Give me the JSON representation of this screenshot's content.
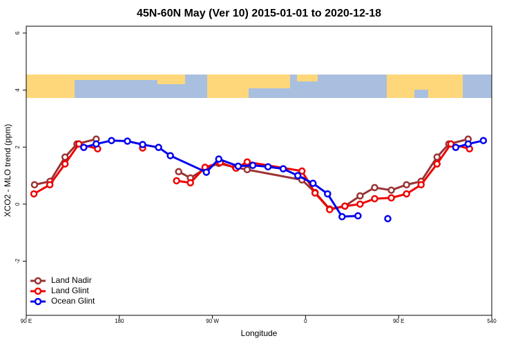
{
  "chart_data": {
    "type": "line",
    "title": "45N-60N May (Ver 10)   2015-01-01 to 2020-12-18",
    "x_label": "Longitude",
    "y_label": "XCO2 - MLO trend (ppm)",
    "xlim": [
      90,
      540
    ],
    "ylim": [
      -3.9,
      6.24
    ],
    "xticks": [
      {
        "value": 90,
        "label": "90 E"
      },
      180,
      {
        "value": 270,
        "label": "90 W"
      },
      {
        "value": 360,
        "label": "0"
      },
      {
        "value": 450,
        "label": "90 E"
      },
      540
    ],
    "yticks": [
      -2,
      0,
      2,
      4,
      6
    ],
    "legend": "bottom-left",
    "series": [
      {
        "name": "Land Nadir",
        "color": "#993333",
        "x": [
          98,
          113,
          127.5,
          139,
          157.6,
          null,
          237.3,
          248.7,
          262.8,
          276.1,
          292.2,
          303.6,
          356.5,
          369.2,
          383.3,
          398,
          412.7,
          426.8,
          442.9,
          457.6,
          471.7,
          487.1,
          498.5,
          517.2
        ],
        "values": [
          0.68,
          0.8,
          1.65,
          2.11,
          2.28,
          null,
          1.14,
          0.92,
          1.24,
          1.43,
          1.29,
          1.21,
          0.85,
          0.41,
          -0.17,
          -0.07,
          0.29,
          0.58,
          0.49,
          0.68,
          0.8,
          1.65,
          2.11,
          2.28
        ]
      },
      {
        "name": "Land Glint",
        "color": "#ee0000",
        "x": [
          97.4,
          112.8,
          127.5,
          140.9,
          159,
          null,
          202.5,
          null,
          235.3,
          248.7,
          262.8,
          277.5,
          292.9,
          303.6,
          356.5,
          369.2,
          383.3,
          398,
          412.7,
          426.8,
          442.9,
          457.6,
          471.7,
          487.1,
          500.5,
          518.5
        ],
        "values": [
          0.36,
          0.68,
          1.41,
          2.11,
          1.94,
          null,
          1.97,
          null,
          0.82,
          0.75,
          1.29,
          1.46,
          1.26,
          1.48,
          1.16,
          0.39,
          -0.19,
          -0.07,
          0,
          0.19,
          0.22,
          0.36,
          0.68,
          1.41,
          2.11,
          1.94
        ]
      },
      {
        "name": "Ocean Glint",
        "color": "#0000ee",
        "x": [
          145.6,
          157.6,
          172.4,
          187.8,
          202.5,
          217.9,
          229.3,
          264.1,
          276.1,
          294.9,
          309,
          323.7,
          338.4,
          352.5,
          367.2,
          381.3,
          395.3,
          410.7,
          null,
          439.5,
          null,
          505.2,
          517.2,
          531.9
        ],
        "values": [
          1.99,
          2.11,
          2.23,
          2.21,
          2.09,
          1.99,
          1.7,
          1.12,
          1.58,
          1.33,
          1.36,
          1.31,
          1.24,
          1.0,
          0.73,
          0.36,
          -0.44,
          -0.41,
          null,
          -0.51,
          null,
          1.99,
          2.11,
          2.23
        ]
      }
    ]
  }
}
